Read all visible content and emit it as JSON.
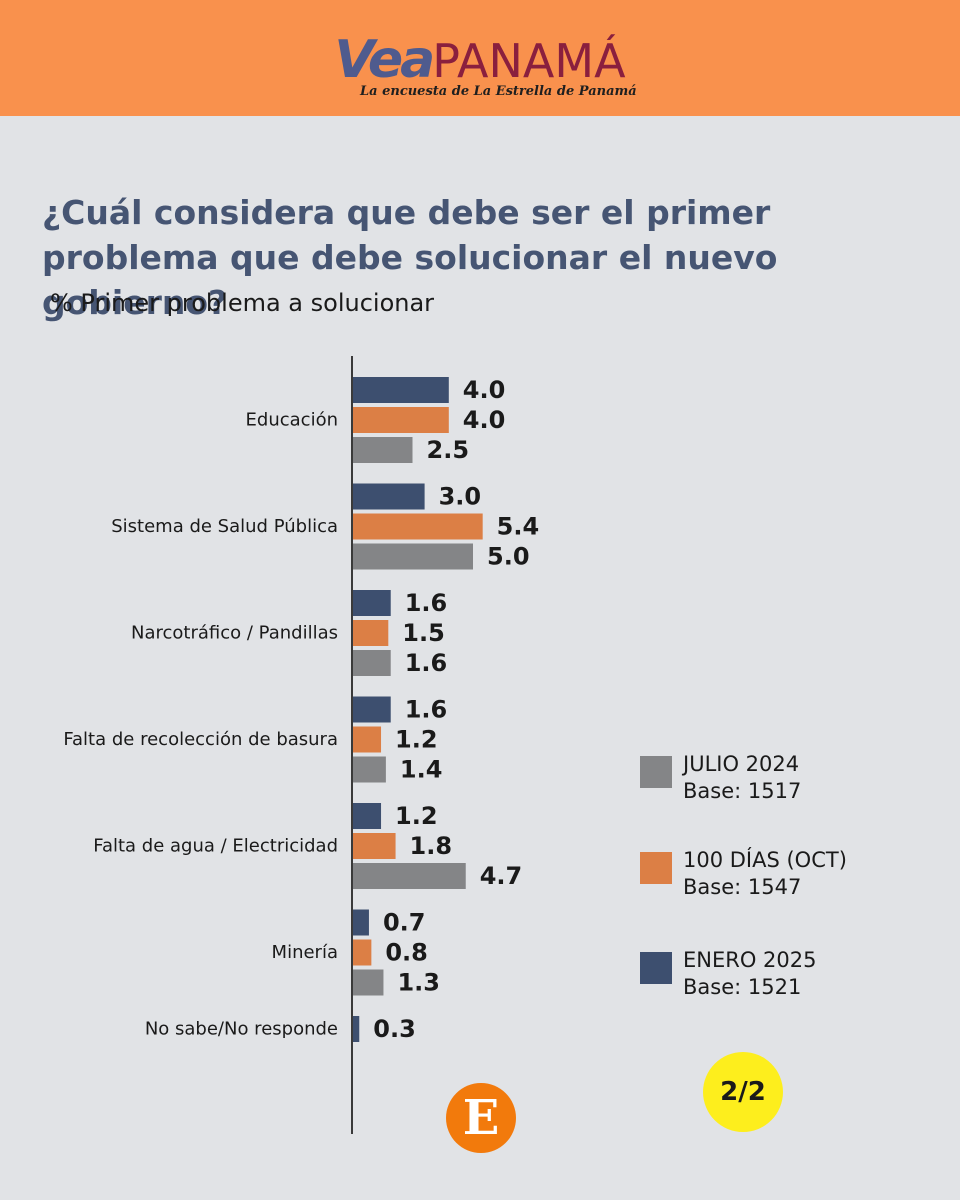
{
  "header": {
    "brand_vea": "Vea",
    "brand_panama": "PANAMÁ",
    "tagline": "La encuesta de La Estrella de Panamá"
  },
  "page_badge": "2/2",
  "emblem": "E",
  "colors": {
    "header_bg": "#f9914d",
    "background": "#e1e3e6",
    "title": "#465573",
    "enero_2025": "#3d4f6f",
    "cien_dias": "#dc7f45",
    "julio_2024": "#848587",
    "badge": "#fdee1d",
    "emblem": "#f27a0c"
  },
  "legend": [
    {
      "name": "JULIO 2024",
      "base": "Base: 1517",
      "color": "#848587"
    },
    {
      "name": "100 DÍAS (OCT)",
      "base": "Base: 1547",
      "color": "#dc7f45"
    },
    {
      "name": "ENERO 2025",
      "base": "Base: 1521",
      "color": "#3d4f6f"
    }
  ],
  "chart_data": {
    "type": "bar",
    "orientation": "horizontal",
    "title": "¿Cuál considera que debe ser el primer problema que debe solucionar el nuevo gobierno?",
    "subtitle": "% Primer problema a solucionar",
    "categories": [
      "Educación",
      "Sistema de Salud Pública",
      "Narcotráfico / Pandillas",
      "Falta de recolección de basura",
      "Falta de agua / Electricidad",
      "Minería",
      "No sabe/No responde"
    ],
    "series": [
      {
        "name": "ENERO 2025",
        "color": "#3d4f6f",
        "values": [
          4.0,
          3.0,
          1.6,
          1.6,
          1.2,
          0.7,
          0.3
        ]
      },
      {
        "name": "100 DÍAS (OCT)",
        "color": "#dc7f45",
        "values": [
          4.0,
          5.4,
          1.5,
          1.2,
          1.8,
          0.8,
          null
        ]
      },
      {
        "name": "JULIO 2024",
        "color": "#848587",
        "values": [
          2.5,
          5.0,
          1.6,
          1.4,
          4.7,
          1.3,
          null
        ]
      }
    ],
    "value_labels": [
      [
        "4.0",
        "3.0",
        "1.6",
        "1.6",
        "1.2",
        "0.7",
        "0.3"
      ],
      [
        "4.0",
        "5.4",
        "1.5",
        "1.2",
        "1.8",
        "0.8",
        ""
      ],
      [
        "2.5",
        "5.0",
        "1.6",
        "1.4",
        "4.7",
        "1.3",
        ""
      ]
    ],
    "xlim": [
      0,
      6
    ],
    "grid": false,
    "legend_position": "right"
  }
}
